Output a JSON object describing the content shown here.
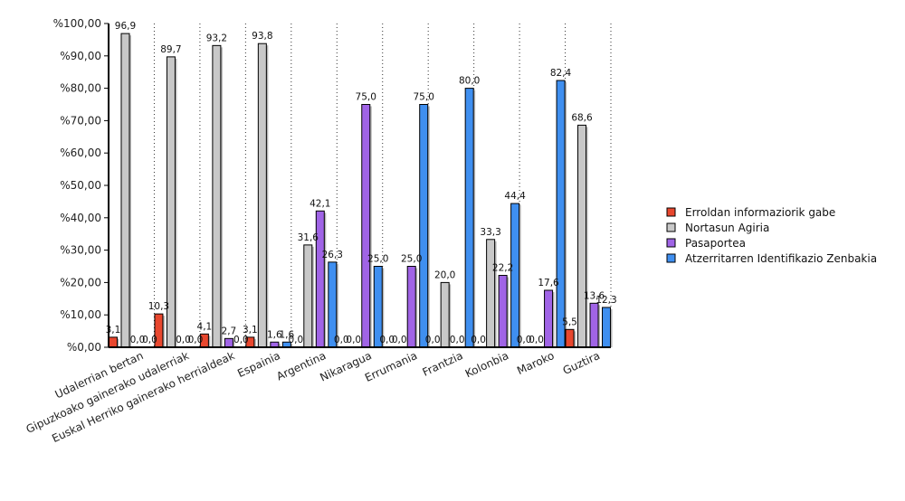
{
  "chart_data": {
    "type": "bar",
    "categories": [
      "Udalerrian bertan",
      "Gipuzkoako gainerako udalerriak",
      "Euskal Herriko gainerako herrialdeak",
      "Espainia",
      "Argentina",
      "Nikaragua",
      "Errumania",
      "Frantzia",
      "Kolonbia",
      "Maroko",
      "Guztira"
    ],
    "series": [
      {
        "name": "Erroldan informaziorik gabe",
        "color": "#e8472e",
        "values": [
          3.1,
          10.3,
          4.1,
          3.1,
          0.0,
          0.0,
          0.0,
          0.0,
          0.0,
          0.0,
          5.5
        ],
        "labels": [
          "3,1",
          "10,3",
          "4,1",
          "3,1",
          "0,0",
          "0,0",
          "0,0",
          "0,0",
          "0,0",
          "0,0",
          "5,5"
        ]
      },
      {
        "name": "Nortasun Agiria",
        "color": "#c8c8c8",
        "values": [
          96.9,
          89.7,
          93.2,
          93.8,
          31.6,
          0.0,
          0.0,
          20.0,
          33.3,
          0.0,
          68.6
        ],
        "labels": [
          "96,9",
          "89,7",
          "93,2",
          "93,8",
          "31,6",
          "0,0",
          "0,0",
          "20,0",
          "33,3",
          "0,0",
          "68,6"
        ]
      },
      {
        "name": "Pasaportea",
        "color": "#a064e6",
        "values": [
          0.0,
          0.0,
          2.7,
          1.6,
          42.1,
          75.0,
          25.0,
          0.0,
          22.2,
          17.6,
          13.6
        ],
        "labels": [
          "0,0",
          "0,0",
          "2,7",
          "1,6",
          "42,1",
          "75,0",
          "25,0",
          "0,0",
          "22,2",
          "17,6",
          "13,6"
        ]
      },
      {
        "name": "Atzerritarren Identifikazio Zenbakia",
        "color": "#3f8ff0",
        "values": [
          0.0,
          0.0,
          0.0,
          1.6,
          26.3,
          25.0,
          75.0,
          80.0,
          44.4,
          82.4,
          12.3
        ],
        "labels": [
          "0,0",
          "0,0",
          "0,0",
          "1,6",
          "26,3",
          "25,0",
          "75,0",
          "80,0",
          "44,4",
          "82,4",
          "12,3"
        ]
      }
    ],
    "yticks": [
      0,
      10,
      20,
      30,
      40,
      50,
      60,
      70,
      80,
      90,
      100
    ],
    "ytick_labels": [
      "%0,00",
      "%10,00",
      "%20,00",
      "%30,00",
      "%40,00",
      "%50,00",
      "%60,00",
      "%70,00",
      "%80,00",
      "%90,00",
      "%100,00"
    ],
    "ylim": [
      0,
      100
    ],
    "grid": "vertical-dotted",
    "legend_position": "right",
    "title": "",
    "xlabel": "",
    "ylabel": ""
  }
}
